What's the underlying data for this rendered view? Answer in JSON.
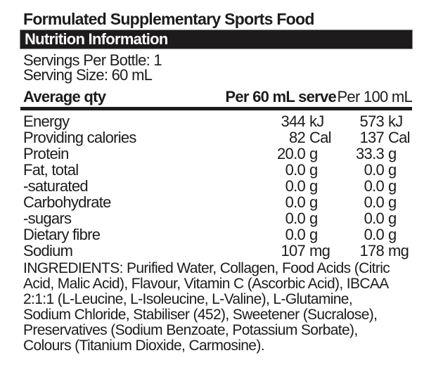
{
  "label": {
    "product_type": "Formulated Supplementary Sports Food",
    "panel_title": "Nutrition Information",
    "servings_per_bottle": "Servings Per Bottle: 1",
    "serving_size": "Serving Size: 60 mL"
  },
  "table": {
    "headers": {
      "qty": "Average qty",
      "per_serve": "Per 60 mL serve",
      "per_100": "Per 100 mL"
    },
    "rows": [
      {
        "label": "Energy",
        "serve_value": "344",
        "serve_unit": "kJ",
        "per100_value": "573",
        "per100_unit": "kJ"
      },
      {
        "label": "Providing calories",
        "serve_value": "82",
        "serve_unit": "Cal",
        "per100_value": "137",
        "per100_unit": "Cal"
      },
      {
        "label": "Protein",
        "serve_value": "20.0",
        "serve_unit": "g",
        "per100_value": "33.3",
        "per100_unit": "g"
      },
      {
        "label": "Fat, total",
        "serve_value": "0.0",
        "serve_unit": "g",
        "per100_value": "0.0",
        "per100_unit": "g"
      },
      {
        "label": "-saturated",
        "serve_value": "0.0",
        "serve_unit": "g",
        "per100_value": "0.0",
        "per100_unit": "g"
      },
      {
        "label": "Carbohydrate",
        "serve_value": "0.0",
        "serve_unit": "g",
        "per100_value": "0.0",
        "per100_unit": "g"
      },
      {
        "label": "-sugars",
        "serve_value": "0.0",
        "serve_unit": "g",
        "per100_value": "0.0",
        "per100_unit": "g"
      },
      {
        "label": "Dietary fibre",
        "serve_value": "0.0",
        "serve_unit": "g",
        "per100_value": "0.0",
        "per100_unit": "g"
      },
      {
        "label": "Sodium",
        "serve_value": "107",
        "serve_unit": "mg",
        "per100_value": "178",
        "per100_unit": "mg"
      }
    ]
  },
  "ingredients": {
    "lines": [
      "INGREDIENTS: Purified Water, Collagen, Food Acids (Citric",
      "Acid, Malic Acid), Flavour, Vitamin C (Ascorbic Acid), IBCAA",
      "2:1:1 (L-Leucine, L-Isoleucine, L-Valine), L-Glutamine,",
      "Sodium Chloride, Stabiliser (452), Sweetener (Sucralose),",
      "Preservatives (Sodium Benzoate, Potassium Sorbate),",
      "Colours (Titanium Dioxide, Carmosine)."
    ],
    "full_text": "INGREDIENTS: Purified Water, Collagen, Food Acids (Citric Acid, Malic Acid), Flavour, Vitamin C (Ascorbic Acid), IBCAA 2:1:1 (L-Leucine, L-Isoleucine, L-Valine), L-Glutamine, Sodium Chloride, Stabiliser (452), Sweetener (Sucralose), Preservatives (Sodium Benzoate, Potassium Sorbate), Colours (Titanium Dioxide, Carmosine)."
  },
  "colors": {
    "text": "#1d1b1c",
    "panel_bar_bg": "#1d1b1c",
    "panel_bar_text": "#ffffff"
  }
}
